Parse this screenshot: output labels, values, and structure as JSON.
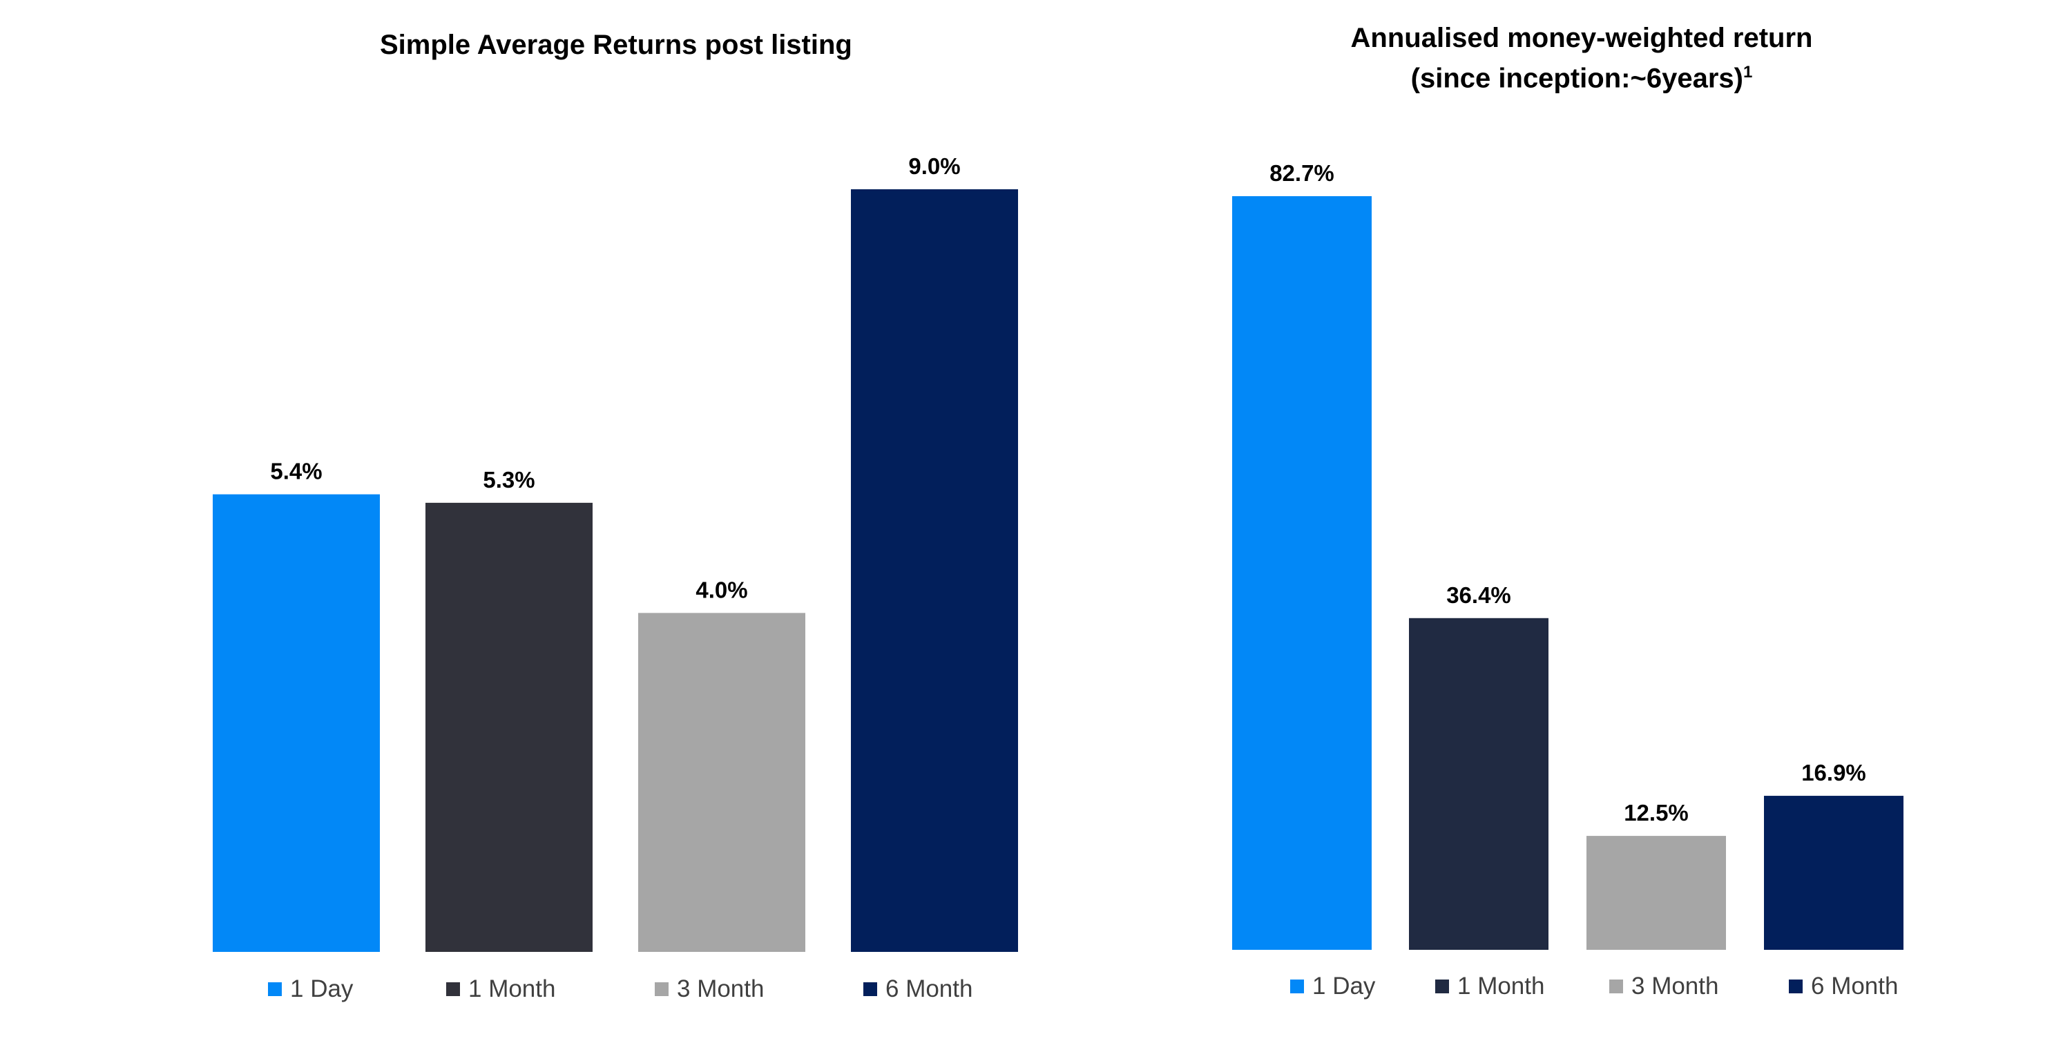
{
  "chart_data": [
    {
      "type": "bar",
      "title": "Simple Average Returns post listing",
      "categories": [
        "1 Day",
        "1 Month",
        "3 Month",
        "6 Month"
      ],
      "values": [
        5.4,
        5.3,
        4.0,
        9.0
      ],
      "value_labels": [
        "5.4%",
        "5.3%",
        "4.0%",
        "9.0%"
      ],
      "colors": [
        "#0288F7",
        "#31323B",
        "#A6A6A6",
        "#021F5B"
      ],
      "ylim": [
        0,
        9.0
      ],
      "grid": false,
      "legend": "bottom"
    },
    {
      "type": "bar",
      "title": "Annualised money-weighted return",
      "subtitle": "(since inception:~6years)",
      "subtitle_sup": "1",
      "categories": [
        "1 Day",
        "1 Month",
        "3 Month",
        "6 Month"
      ],
      "values": [
        82.7,
        36.4,
        12.5,
        16.9
      ],
      "value_labels": [
        "82.7%",
        "36.4%",
        "12.5%",
        "16.9%"
      ],
      "colors": [
        "#0288F7",
        "#202A42",
        "#A6A6A6",
        "#021F5B"
      ],
      "ylim": [
        0,
        82.7
      ],
      "grid": false,
      "legend": "bottom"
    }
  ]
}
